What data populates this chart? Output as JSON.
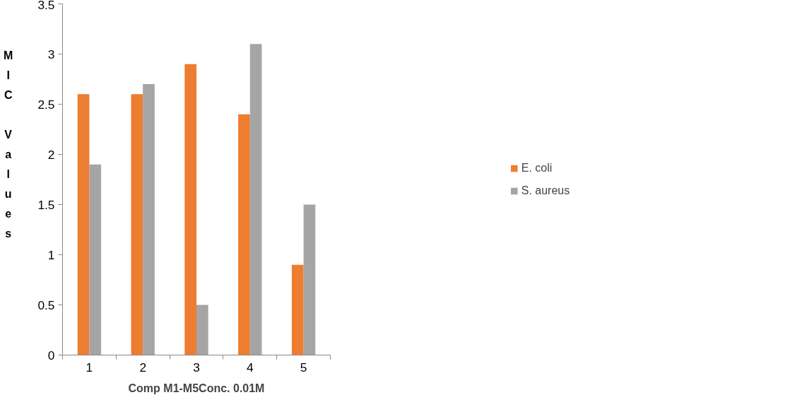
{
  "chart_data": {
    "type": "bar",
    "xlabel": "Comp M1-M5Conc. 0.01M",
    "ylabel": "MIC Values",
    "categories": [
      "1",
      "2",
      "3",
      "4",
      "5"
    ],
    "series": [
      {
        "name": "E. coli",
        "color": "#ed7d31",
        "values": [
          2.6,
          2.6,
          2.9,
          2.4,
          0.9
        ]
      },
      {
        "name": "S. aureus",
        "color": "#a5a5a5",
        "values": [
          1.9,
          2.7,
          0.5,
          3.1,
          1.5
        ]
      }
    ],
    "ylim": [
      0,
      3.5
    ],
    "yticks": [
      0,
      0.5,
      1,
      1.5,
      2,
      2.5,
      3,
      3.5
    ],
    "grid": false,
    "legend": "right"
  }
}
